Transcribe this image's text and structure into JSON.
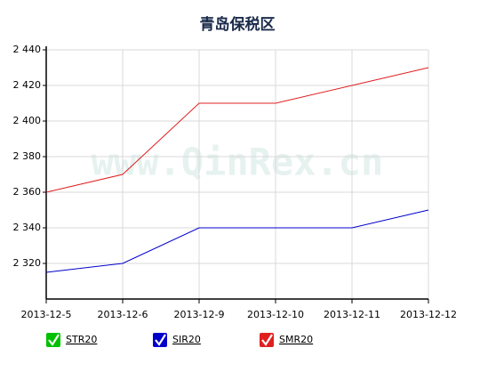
{
  "chart_data": {
    "type": "line",
    "title": "青岛保税区",
    "watermark": "www.QinRex.cn",
    "categories": [
      "2013-12-5",
      "2013-12-6",
      "2013-12-9",
      "2013-12-10",
      "2013-12-11",
      "2013-12-12"
    ],
    "series": [
      {
        "name": "STR20",
        "color": "#00c000",
        "values": [
          null,
          null,
          null,
          null,
          null,
          null
        ]
      },
      {
        "name": "SIR20",
        "color": "#0000cc",
        "values": [
          2315,
          2320,
          2340,
          2340,
          2340,
          2350
        ]
      },
      {
        "name": "SMR20",
        "color": "#e02020",
        "values": [
          2360,
          2370,
          2410,
          2410,
          2420,
          2430
        ]
      }
    ],
    "ylim": [
      2300,
      2440
    ],
    "yticks": [
      {
        "value": 2320,
        "label": "2 320"
      },
      {
        "value": 2340,
        "label": "2 340"
      },
      {
        "value": 2360,
        "label": "2 360"
      },
      {
        "value": 2380,
        "label": "2 380"
      },
      {
        "value": 2400,
        "label": "2 400"
      },
      {
        "value": 2420,
        "label": "2 420"
      },
      {
        "value": 2440,
        "label": "2 440"
      }
    ],
    "grid": true
  }
}
